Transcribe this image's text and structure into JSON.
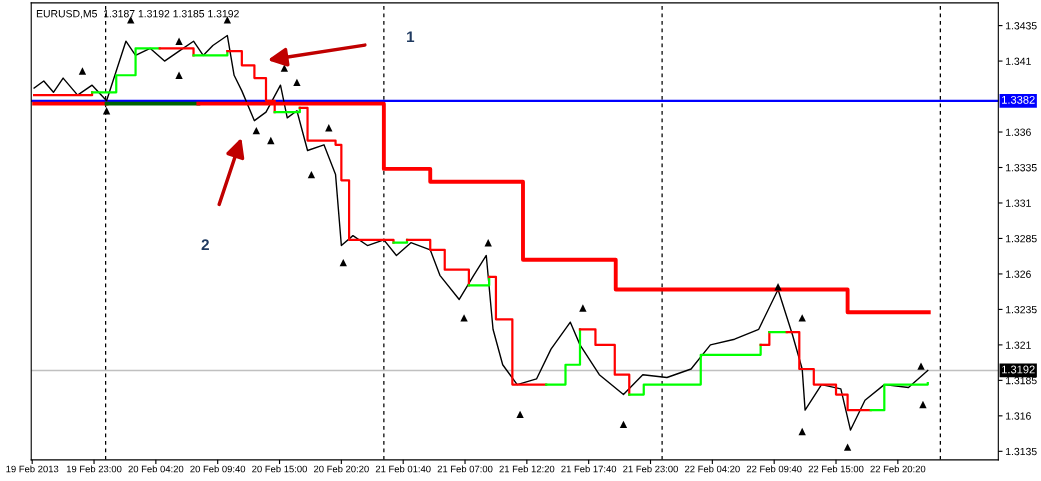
{
  "chart_data": {
    "type": "line",
    "title": "EURUSD,M5  1.3187 1.3192 1.3185 1.3192",
    "xlim": [
      "2013-02-19T17:35",
      "2013-02-23T05:00"
    ],
    "ylim": [
      1.3129,
      1.3451
    ],
    "xticks": [
      {
        "value": "2013-02-19T17:40",
        "label": "19 Feb 2013"
      },
      {
        "value": "2013-02-19T23:00",
        "label": "19 Feb 23:00"
      },
      {
        "value": "2013-02-20T04:20",
        "label": "20 Feb 04:20"
      },
      {
        "value": "2013-02-20T09:40",
        "label": "20 Feb 09:40"
      },
      {
        "value": "2013-02-20T15:00",
        "label": "20 Feb 15:00"
      },
      {
        "value": "2013-02-20T20:20",
        "label": "20 Feb 20:20"
      },
      {
        "value": "2013-02-21T01:40",
        "label": "21 Feb 01:40"
      },
      {
        "value": "2013-02-21T07:00",
        "label": "21 Feb 07:00"
      },
      {
        "value": "2013-02-21T12:20",
        "label": "21 Feb 12:20"
      },
      {
        "value": "2013-02-21T17:40",
        "label": "21 Feb 17:40"
      },
      {
        "value": "2013-02-21T23:00",
        "label": "21 Feb 23:00"
      },
      {
        "value": "2013-02-22T04:20",
        "label": "22 Feb 04:20"
      },
      {
        "value": "2013-02-22T09:40",
        "label": "22 Feb 09:40"
      },
      {
        "value": "2013-02-22T15:00",
        "label": "22 Feb 15:00"
      },
      {
        "value": "2013-02-22T20:20",
        "label": "22 Feb 20:20"
      }
    ],
    "yticks": [
      1.3135,
      1.316,
      1.3185,
      1.321,
      1.3235,
      1.326,
      1.3285,
      1.331,
      1.3335,
      1.336,
      1.341,
      1.3435
    ],
    "grid": false,
    "legend": false,
    "series": [
      {
        "color": "#000000",
        "x": [
          "2013-02-19T17:50",
          "2013-02-19T18:40",
          "2013-02-19T19:30",
          "2013-02-19T20:20",
          "2013-02-19T21:35",
          "2013-02-19T22:50",
          "2013-02-20T00:05",
          "2013-02-20T00:55",
          "2013-02-20T01:45",
          "2013-02-20T02:35",
          "2013-02-20T03:50",
          "2013-02-20T05:05",
          "2013-02-20T06:20",
          "2013-02-20T07:35",
          "2013-02-20T08:25",
          "2013-02-20T09:15",
          "2013-02-20T10:30",
          "2013-02-20T11:05",
          "2013-02-20T11:45",
          "2013-02-20T12:50",
          "2013-02-20T13:50",
          "2013-02-20T15:05",
          "2013-02-20T15:40",
          "2013-02-20T16:30",
          "2013-02-20T17:25",
          "2013-02-20T18:50",
          "2013-02-20T19:50",
          "2013-02-20T20:20",
          "2013-02-20T21:20",
          "2013-02-20T22:35",
          "2013-02-21T00:00",
          "2013-02-21T01:05",
          "2013-02-21T02:20",
          "2013-02-21T04:00",
          "2013-02-21T04:50",
          "2013-02-21T06:30",
          "2013-02-21T07:45",
          "2013-02-21T08:50",
          "2013-02-21T09:25",
          "2013-02-21T10:15",
          "2013-02-21T11:30",
          "2013-02-21T13:10",
          "2013-02-21T14:25",
          "2013-02-21T16:05",
          "2013-02-21T16:55",
          "2013-02-21T18:35",
          "2013-02-21T20:40",
          "2013-02-21T22:20",
          "2013-02-22T00:25",
          "2013-02-22T02:30",
          "2013-02-22T04:10",
          "2013-02-22T06:15",
          "2013-02-22T08:20",
          "2013-02-22T10:00",
          "2013-02-22T11:15",
          "2013-02-22T12:05",
          "2013-02-22T12:20",
          "2013-02-22T13:45",
          "2013-02-22T15:25",
          "2013-02-22T16:15",
          "2013-02-22T17:30",
          "2013-02-22T19:10",
          "2013-02-22T21:15",
          "2013-02-22T22:55"
        ],
        "values": [
          1.3391,
          1.3396,
          1.3388,
          1.3398,
          1.3386,
          1.3393,
          1.3382,
          1.3403,
          1.3424,
          1.3414,
          1.3419,
          1.341,
          1.3417,
          1.3424,
          1.3414,
          1.3421,
          1.3428,
          1.34,
          1.3389,
          1.3368,
          1.3374,
          1.3393,
          1.337,
          1.3375,
          1.3347,
          1.3351,
          1.333,
          1.328,
          1.3287,
          1.328,
          1.3284,
          1.3273,
          1.3282,
          1.3277,
          1.3259,
          1.3242,
          1.3259,
          1.3273,
          1.3221,
          1.3196,
          1.3182,
          1.3186,
          1.3207,
          1.3226,
          1.321,
          1.3189,
          1.3175,
          1.3189,
          1.3187,
          1.3193,
          1.321,
          1.3214,
          1.3221,
          1.3249,
          1.3217,
          1.3193,
          1.3164,
          1.3182,
          1.3179,
          1.315,
          1.3171,
          1.3182,
          1.318,
          1.3192
        ]
      },
      {
        "type": "step",
        "color": "#ff0000",
        "x": [
          "2013-02-19T17:50",
          "2013-02-19T20:20",
          "2013-02-19T22:50"
        ],
        "values": [
          1.3386,
          1.3386,
          1.3388
        ]
      },
      {
        "type": "step",
        "color": "#00ff00",
        "x": [
          "2013-02-19T22:50",
          "2013-02-20T00:55",
          "2013-02-20T02:35",
          "2013-02-20T04:40"
        ],
        "values": [
          1.3388,
          1.34,
          1.3419,
          1.3419
        ]
      },
      {
        "type": "step",
        "color": "#ff0000",
        "x": [
          "2013-02-20T04:40",
          "2013-02-20T07:35"
        ],
        "values": [
          1.3419,
          1.3414
        ]
      },
      {
        "type": "step",
        "color": "#00ff00",
        "x": [
          "2013-02-20T07:35",
          "2013-02-20T10:30"
        ],
        "values": [
          1.3414,
          1.3417
        ]
      },
      {
        "type": "step",
        "color": "#ff0000",
        "x": [
          "2013-02-20T10:30",
          "2013-02-20T11:45",
          "2013-02-20T12:50",
          "2013-02-20T13:50",
          "2013-02-20T14:35"
        ],
        "values": [
          1.3417,
          1.3407,
          1.3398,
          1.3382,
          1.3374
        ]
      },
      {
        "type": "step",
        "color": "#00ff00",
        "x": [
          "2013-02-20T14:35",
          "2013-02-20T16:45"
        ],
        "values": [
          1.3374,
          1.3377
        ]
      },
      {
        "type": "step",
        "color": "#ff0000",
        "x": [
          "2013-02-20T16:45",
          "2013-02-20T17:25",
          "2013-02-20T19:50",
          "2013-02-20T20:20",
          "2013-02-20T21:00",
          "2013-02-21T00:50"
        ],
        "values": [
          1.3377,
          1.3354,
          1.3351,
          1.3326,
          1.3284,
          1.3282
        ]
      },
      {
        "type": "step",
        "color": "#00ff00",
        "x": [
          "2013-02-21T00:50",
          "2013-02-21T02:00"
        ],
        "values": [
          1.3282,
          1.3284
        ]
      },
      {
        "type": "step",
        "color": "#ff0000",
        "x": [
          "2013-02-21T02:00",
          "2013-02-21T04:00",
          "2013-02-21T05:15",
          "2013-02-21T07:20"
        ],
        "values": [
          1.3284,
          1.3277,
          1.3263,
          1.3252
        ]
      },
      {
        "type": "step",
        "color": "#00ff00",
        "x": [
          "2013-02-21T07:20",
          "2013-02-21T09:05"
        ],
        "values": [
          1.3252,
          1.3258
        ]
      },
      {
        "type": "step",
        "color": "#ff0000",
        "x": [
          "2013-02-21T09:05",
          "2013-02-21T09:40",
          "2013-02-21T11:05",
          "2013-02-21T14:00"
        ],
        "values": [
          1.3258,
          1.3228,
          1.3182,
          1.3182
        ]
      },
      {
        "type": "step",
        "color": "#00ff00",
        "x": [
          "2013-02-21T14:00",
          "2013-02-21T15:40",
          "2013-02-21T16:55"
        ],
        "values": [
          1.3182,
          1.3196,
          1.3221
        ]
      },
      {
        "type": "step",
        "color": "#ff0000",
        "x": [
          "2013-02-21T16:55",
          "2013-02-21T18:15",
          "2013-02-21T19:55",
          "2013-02-21T21:10"
        ],
        "values": [
          1.3221,
          1.321,
          1.3189,
          1.3175
        ]
      },
      {
        "type": "step",
        "color": "#00ff00",
        "x": [
          "2013-02-21T21:10",
          "2013-02-21T22:25",
          "2013-02-22T03:20",
          "2013-02-22T08:30"
        ],
        "values": [
          1.3175,
          1.3182,
          1.3203,
          1.321
        ]
      },
      {
        "type": "step",
        "color": "#ff0000",
        "x": [
          "2013-02-22T08:30",
          "2013-02-22T09:15"
        ],
        "values": [
          1.321,
          1.3219
        ]
      },
      {
        "type": "step",
        "color": "#00ff00",
        "x": [
          "2013-02-22T09:15",
          "2013-02-22T10:45"
        ],
        "values": [
          1.3219,
          1.3219
        ]
      },
      {
        "type": "step",
        "color": "#ff0000",
        "x": [
          "2013-02-22T10:45",
          "2013-02-22T11:50",
          "2013-02-22T13:05",
          "2013-02-22T15:00",
          "2013-02-22T16:00",
          "2013-02-22T18:00"
        ],
        "values": [
          1.3219,
          1.3193,
          1.3182,
          1.3175,
          1.3164,
          1.3164
        ]
      },
      {
        "type": "step",
        "color": "#00ff00",
        "x": [
          "2013-02-22T18:00",
          "2013-02-22T19:10",
          "2013-02-22T22:55"
        ],
        "values": [
          1.3164,
          1.3182,
          1.3183
        ]
      },
      {
        "type": "step",
        "color": "#ff0000",
        "x": [
          "2013-02-19T17:50",
          "2013-02-20T00:05"
        ],
        "values": [
          1.338,
          1.338
        ]
      },
      {
        "type": "step",
        "color": "#006400",
        "x": [
          "2013-02-20T00:05",
          "2013-02-20T08:00"
        ],
        "values": [
          1.338,
          1.338
        ]
      },
      {
        "type": "step",
        "color": "#ff0000",
        "x": [
          "2013-02-20T08:00",
          "2013-02-21T00:00",
          "2013-02-21T04:00",
          "2013-02-21T12:00",
          "2013-02-21T20:00",
          "2013-02-22T16:00",
          "2013-02-22T23:00"
        ],
        "values": [
          1.338,
          1.3334,
          1.3325,
          1.327,
          1.3249,
          1.3233,
          1.3233
        ]
      },
      {
        "type": "scatter",
        "marker": "triangle",
        "color": "#000000",
        "x": [
          "2013-02-19T22:00",
          "2013-02-20T02:10",
          "2013-02-20T06:20",
          "2013-02-20T10:30",
          "2013-02-20T15:25",
          "2013-02-20T16:30",
          "2013-02-20T19:15",
          "2013-02-21T09:00",
          "2013-02-21T17:10",
          "2013-02-22T10:00",
          "2013-02-22T12:05",
          "2013-02-22T22:20"
        ],
        "values": [
          1.3403,
          1.3439,
          1.3424,
          1.3439,
          1.3405,
          1.3395,
          1.3363,
          1.3282,
          1.3236,
          1.3251,
          1.3229,
          1.3195
        ]
      },
      {
        "type": "scatter",
        "marker": "triangle",
        "color": "#000000",
        "x": [
          "2013-02-20T00:05",
          "2013-02-20T06:20",
          "2013-02-20T13:00",
          "2013-02-20T14:15",
          "2013-02-20T17:45",
          "2013-02-20T20:30",
          "2013-02-21T06:55",
          "2013-02-21T11:45",
          "2013-02-21T20:40",
          "2013-02-22T12:05",
          "2013-02-22T16:00",
          "2013-02-22T22:30"
        ],
        "values": [
          1.3375,
          1.34,
          1.3361,
          1.3354,
          1.333,
          1.3268,
          1.3229,
          1.3161,
          1.3154,
          1.3149,
          1.3138,
          1.3168
        ]
      }
    ],
    "ref_lines": [
      {
        "axis": "y",
        "value": 1.3382,
        "label": "1.3382",
        "color": "#0000ff",
        "line_style": "solid"
      },
      {
        "axis": "y",
        "value": 1.3192,
        "label": "1.3192",
        "color": "#c0c0c0",
        "line_style": "solid"
      },
      {
        "axis": "x",
        "value": "2013-02-20T00:00",
        "color": "#000000",
        "line_style": "dashed"
      },
      {
        "axis": "x",
        "value": "2013-02-21T00:00",
        "color": "#000000",
        "line_style": "dashed"
      },
      {
        "axis": "x",
        "value": "2013-02-22T00:00",
        "color": "#000000",
        "line_style": "dashed"
      },
      {
        "axis": "x",
        "value": "2013-02-23T00:00",
        "color": "#000000",
        "line_style": "dashed"
      }
    ],
    "annotations": [
      "1",
      "2"
    ]
  }
}
